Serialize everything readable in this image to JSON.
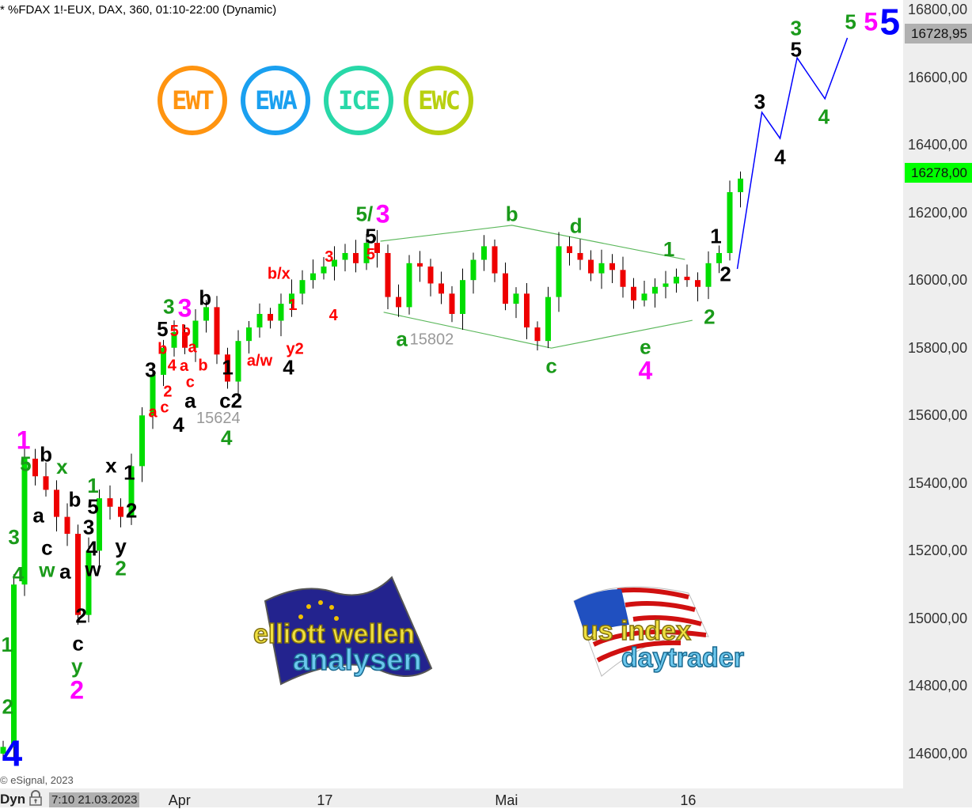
{
  "header": {
    "title": "* %FDAX 1!-EUX, DAX, 360, 01:10-22:00 (Dynamic)"
  },
  "footer": {
    "copyright": "© eSignal, 2023",
    "mode_label": "Dyn",
    "cursor_datetime": "7:10 21.03.2023"
  },
  "badges": [
    {
      "label": "EWT",
      "color": "#ff9410"
    },
    {
      "label": "EWA",
      "color": "#1aa0f0"
    },
    {
      "label": "ICE",
      "color": "#28d8a8"
    },
    {
      "label": "EWC",
      "color": "#b8d010"
    }
  ],
  "logos": [
    {
      "line1": "elliott wellen",
      "line2": "analysen"
    },
    {
      "line1": "us index",
      "line2": "daytrader"
    }
  ],
  "colors": {
    "up": "#00dd00",
    "down": "#ee0000",
    "green": "#1a9a1a",
    "black": "#000000",
    "red": "#ff0000",
    "magenta": "#ff00ff",
    "blue": "#0000ff",
    "projection": "#0000ff",
    "triangle": "#5cb85c"
  },
  "chart_data": {
    "type": "candlestick",
    "symbol": "%FDAX 1!-EUX",
    "interval": "360",
    "ylim": [
      14560,
      16830
    ],
    "yticks": [
      16800,
      16600,
      16400,
      16200,
      16000,
      15800,
      15600,
      15400,
      15200,
      15000,
      14800,
      14600
    ],
    "ytick_labels": [
      "16800,00",
      "16600,00",
      "16400,00",
      "16200,00",
      "16000,00",
      "15800,00",
      "15600,00",
      "15400,00",
      "15200,00",
      "15000,00",
      "14800,00",
      "14600,00"
    ],
    "xticks": [
      {
        "bar": 16.8,
        "label": "Apr"
      },
      {
        "bar": 30.4,
        "label": "17"
      },
      {
        "bar": 47.4,
        "label": "Mai"
      },
      {
        "bar": 64.4,
        "label": "16"
      }
    ],
    "xlim": [
      0,
      84.4
    ],
    "grid": false,
    "first_open": 14600,
    "closes": [
      14620,
      15100,
      15472,
      15420,
      15380,
      15300,
      15250,
      15010,
      15200,
      15355,
      15330,
      15300,
      15450,
      15600,
      15720,
      15800,
      15846,
      15800,
      15880,
      15920,
      15780,
      15700,
      15820,
      15860,
      15900,
      15880,
      15930,
      15960,
      16000,
      16020,
      16040,
      16060,
      16080,
      16050,
      16110,
      16080,
      15950,
      15920,
      16050,
      16040,
      15990,
      15960,
      15900,
      16000,
      16060,
      16100,
      16020,
      15930,
      15960,
      15860,
      15820,
      15950,
      16100,
      16080,
      16060,
      16020,
      16050,
      16030,
      15980,
      15940,
      15960,
      15980,
      15990,
      16010,
      16000,
      15980,
      16050,
      16080,
      16260,
      16300
    ],
    "last_price": {
      "value": 16278.0,
      "label": "16278,00"
    },
    "crosshair_price": {
      "value": 16728.95,
      "label": "16728,95"
    },
    "projection": [
      [
        69.0,
        16033
      ],
      [
        71.3,
        16496
      ],
      [
        73.0,
        16419
      ],
      [
        74.6,
        16657
      ],
      [
        77.2,
        16536
      ],
      [
        79.3,
        16716
      ]
    ],
    "triangle": {
      "upper": [
        [
          35.6,
          16115
        ],
        [
          47.9,
          16162
        ],
        [
          64.1,
          16061
        ]
      ],
      "lower": [
        [
          35.9,
          15905
        ],
        [
          51.6,
          15799
        ],
        [
          64.8,
          15881
        ]
      ]
    },
    "annotations": [
      {
        "t": "3",
        "c": "green",
        "x": 74.5,
        "y": 16746
      },
      {
        "t": "5",
        "c": "black",
        "x": 74.5,
        "y": 16683
      },
      {
        "t": "3",
        "c": "black",
        "x": 71.1,
        "y": 16529
      },
      {
        "t": "4",
        "c": "black",
        "x": 73.0,
        "y": 16365
      },
      {
        "t": "4",
        "c": "green",
        "x": 77.1,
        "y": 16484
      },
      {
        "t": "5",
        "c": "green",
        "x": 79.6,
        "y": 16765
      },
      {
        "t": "5",
        "c": "magenta",
        "x": 81.5,
        "y": 16765
      },
      {
        "t": "5",
        "c": "blue",
        "x": 83.5,
        "y": 16765
      },
      {
        "t": "1",
        "c": "black",
        "x": 67.0,
        "y": 16131
      },
      {
        "t": "2",
        "c": "black",
        "x": 67.9,
        "y": 16019
      },
      {
        "t": "2",
        "c": "green",
        "x": 66.4,
        "y": 15893
      },
      {
        "t": "1",
        "c": "green",
        "x": 62.6,
        "y": 16092
      },
      {
        "t": "d",
        "c": "green",
        "x": 53.9,
        "y": 16162
      },
      {
        "t": "b",
        "c": "green",
        "x": 47.9,
        "y": 16197
      },
      {
        "t": "c",
        "c": "green",
        "x": 51.6,
        "y": 15748
      },
      {
        "t": "e",
        "c": "green",
        "x": 60.4,
        "y": 15804
      },
      {
        "t": "4",
        "c": "magenta",
        "x": 60.4,
        "y": 15734
      },
      {
        "t": "a",
        "c": "green",
        "x": 37.6,
        "y": 15827
      },
      {
        "t": "15802",
        "c": "gray",
        "x": 40.4,
        "y": 15827
      },
      {
        "t": "5/",
        "c": "green",
        "x": 34.1,
        "y": 16197
      },
      {
        "t": "3",
        "c": "magenta",
        "x": 35.6,
        "y": 16197
      },
      {
        "t": "5",
        "c": "black",
        "x": 34.7,
        "y": 16145
      },
      {
        "t": "5",
        "c": "red",
        "x": 34.7,
        "y": 16113
      },
      {
        "t": "3",
        "c": "red",
        "x": 30.8,
        "y": 16071
      },
      {
        "t": "b/x",
        "c": "red",
        "x": 26.1,
        "y": 16021
      },
      {
        "t": "4",
        "c": "red",
        "x": 31.2,
        "y": 15898
      },
      {
        "t": "1",
        "c": "red",
        "x": 27.4,
        "y": 15928
      },
      {
        "t": "y2",
        "c": "red",
        "x": 27.6,
        "y": 15799
      },
      {
        "t": "a/w",
        "c": "red",
        "x": 24.3,
        "y": 15764
      },
      {
        "t": "4",
        "c": "black",
        "x": 27.0,
        "y": 15757
      },
      {
        "t": "b",
        "c": "black",
        "x": 19.2,
        "y": 15949
      },
      {
        "t": "3",
        "c": "green",
        "x": 15.8,
        "y": 15923
      },
      {
        "t": "3",
        "c": "magenta",
        "x": 17.3,
        "y": 15919
      },
      {
        "t": "5",
        "c": "black",
        "x": 16.1,
        "y": 15884
      },
      {
        "t": "5",
        "c": "red",
        "x": 16.1,
        "y": 15851
      },
      {
        "t": "b",
        "c": "red",
        "x": 17.4,
        "y": 15851
      },
      {
        "t": "b",
        "c": "red",
        "x": 15.2,
        "y": 15799
      },
      {
        "t": "a",
        "c": "red",
        "x": 18.0,
        "y": 15810
      },
      {
        "t": "4",
        "c": "red",
        "x": 16.1,
        "y": 15750
      },
      {
        "t": "a",
        "c": "red",
        "x": 17.0,
        "y": 15748
      },
      {
        "t": "b",
        "c": "red",
        "x": 19.0,
        "y": 15750
      },
      {
        "t": "c",
        "c": "red",
        "x": 17.8,
        "y": 15701
      },
      {
        "t": "a",
        "c": "black",
        "x": 17.8,
        "y": 15673
      },
      {
        "t": "3",
        "c": "black",
        "x": 14.1,
        "y": 15736
      },
      {
        "t": "1",
        "c": "black",
        "x": 21.3,
        "y": 15743
      },
      {
        "t": "2",
        "c": "red",
        "x": 15.7,
        "y": 15673
      },
      {
        "t": "c",
        "c": "red",
        "x": 15.4,
        "y": 15640
      },
      {
        "t": "a",
        "c": "red",
        "x": 14.3,
        "y": 15612
      },
      {
        "t": "4",
        "c": "black",
        "x": 15.6,
        "y": 15608
      },
      {
        "t": "15624",
        "c": "gray",
        "x": 19.1,
        "y": 15636
      },
      {
        "t": "c2",
        "c": "black",
        "x": 21.6,
        "y": 15624
      },
      {
        "t": "4",
        "c": "green",
        "x": 21.2,
        "y": 15577
      },
      {
        "t": "1",
        "c": "magenta",
        "x": 2.2,
        "y": 15528
      },
      {
        "t": "5",
        "c": "green",
        "x": 2.4,
        "y": 15472
      },
      {
        "t": "b",
        "c": "black",
        "x": 4.3,
        "y": 15486
      },
      {
        "t": "x",
        "c": "green",
        "x": 5.8,
        "y": 15449
      },
      {
        "t": "x",
        "c": "black",
        "x": 10.4,
        "y": 15453
      },
      {
        "t": "1",
        "c": "black",
        "x": 12.1,
        "y": 15432
      },
      {
        "t": "1",
        "c": "green",
        "x": 8.7,
        "y": 15393
      },
      {
        "t": "b",
        "c": "black",
        "x": 7.0,
        "y": 15353
      },
      {
        "t": "5",
        "c": "black",
        "x": 8.7,
        "y": 15353
      },
      {
        "t": "a",
        "c": "black",
        "x": 3.6,
        "y": 15306
      },
      {
        "t": "2",
        "c": "black",
        "x": 12.3,
        "y": 15320
      },
      {
        "t": "3",
        "c": "green",
        "x": 1.3,
        "y": 15241
      },
      {
        "t": "c",
        "c": "black",
        "x": 4.4,
        "y": 15210
      },
      {
        "t": "w",
        "c": "green",
        "x": 4.4,
        "y": 15173
      },
      {
        "t": "3",
        "c": "black",
        "x": 8.3,
        "y": 15278
      },
      {
        "t": "4",
        "c": "black",
        "x": 8.6,
        "y": 15215
      },
      {
        "t": "y",
        "c": "black",
        "x": 11.3,
        "y": 15215
      },
      {
        "t": "2",
        "c": "green",
        "x": 11.3,
        "y": 15177
      },
      {
        "t": "4",
        "c": "green",
        "x": 1.7,
        "y": 15131
      },
      {
        "t": "a",
        "c": "black",
        "x": 6.1,
        "y": 15140
      },
      {
        "t": "w",
        "c": "black",
        "x": 8.7,
        "y": 15154
      },
      {
        "t": "2",
        "c": "black",
        "x": 7.6,
        "y": 15009
      },
      {
        "t": "c",
        "c": "black",
        "x": 7.3,
        "y": 14927
      },
      {
        "t": "y",
        "c": "green",
        "x": 7.2,
        "y": 14888
      },
      {
        "t": "2",
        "c": "magenta",
        "x": 7.2,
        "y": 14838
      },
      {
        "t": "1",
        "c": "green",
        "x": 0.2,
        "y": 14923
      },
      {
        "t": "2",
        "c": "green",
        "x": 0.5,
        "y": 14740
      },
      {
        "t": "4",
        "c": "blue",
        "x": 0.7,
        "y": 14588
      }
    ]
  }
}
